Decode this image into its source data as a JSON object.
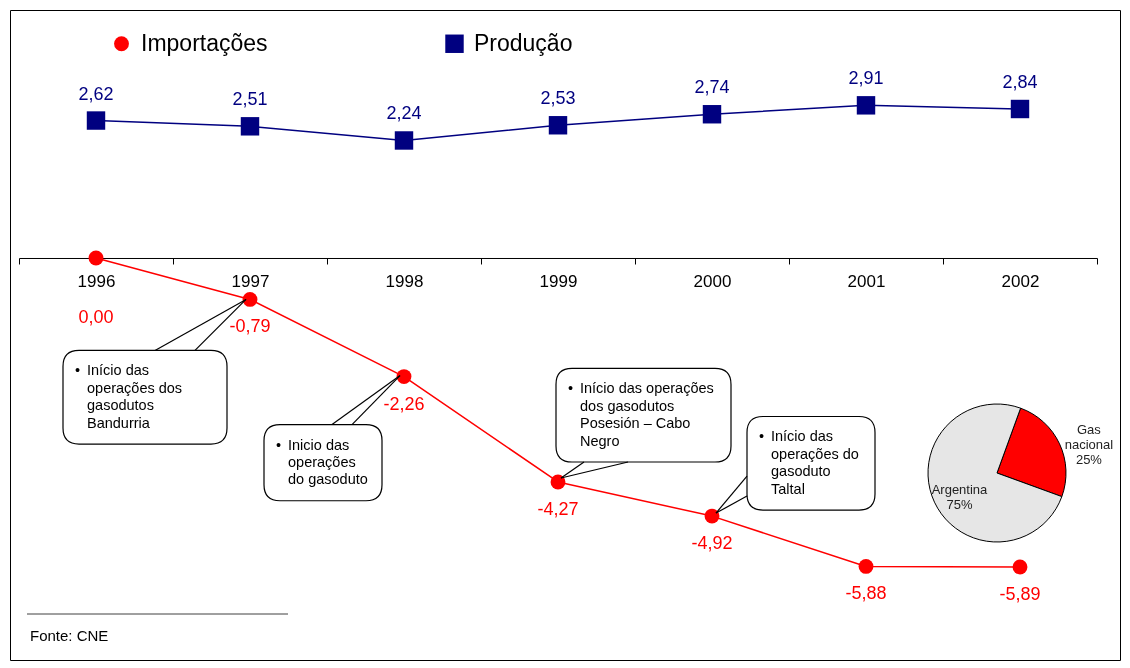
{
  "chart_data": [
    {
      "type": "line",
      "categories": [
        "1996",
        "1997",
        "1998",
        "1999",
        "2000",
        "2001",
        "2002"
      ],
      "series": [
        {
          "name": "Importações",
          "color": "#ff0000",
          "marker": "circle",
          "values": [
            0.0,
            -0.79,
            -2.26,
            -4.27,
            -4.92,
            -5.88,
            -5.89
          ],
          "value_labels": [
            "0,00",
            "-0,79",
            "-2,26",
            "-4,27",
            "-4,92",
            "-5,88",
            "-5,89"
          ]
        },
        {
          "name": "Produção",
          "color": "#000080",
          "marker": "square",
          "values": [
            2.62,
            2.51,
            2.24,
            2.53,
            2.74,
            2.91,
            2.84
          ],
          "value_labels": [
            "2,62",
            "2,51",
            "2,24",
            "2,53",
            "2,74",
            "2,91",
            "2,84"
          ]
        }
      ],
      "legend": "top left",
      "tick_labels": "x",
      "annotations": [
        {
          "text": "• Início das operações dos gasodutos Bandurria",
          "x": "1997",
          "y": -0.79
        },
        {
          "text": "• Inicio das operações do gasoduto",
          "x": "1998",
          "y": -2.26
        },
        {
          "text": "• Início das operações dos gasodutos Posesión – Cabo Negro",
          "x": "1999",
          "y": -4.27
        },
        {
          "text": "• Início das operações do gasoduto Taltal",
          "x": "2000",
          "y": -4.92
        },
        "Fonte: CNE"
      ]
    },
    {
      "type": "pie",
      "categories": [
        "Gas nacional",
        "Argentina"
      ],
      "values": [
        25,
        75
      ],
      "colors": [
        "#ff0000",
        "#e6e6e6"
      ],
      "value_labels": [
        "25%",
        "75%"
      ]
    }
  ]
}
